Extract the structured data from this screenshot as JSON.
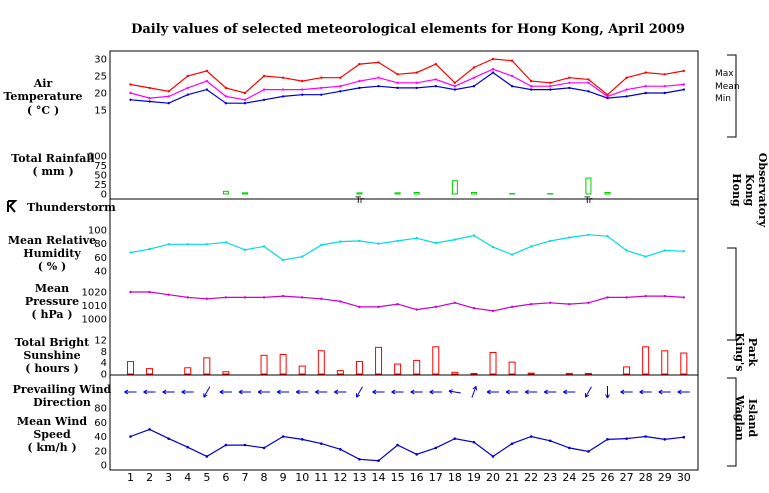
{
  "chart_data": {
    "type": "line",
    "title": "Daily values of selected meteorological elements for Hong Kong, April 2009",
    "days": [
      1,
      2,
      3,
      4,
      5,
      6,
      7,
      8,
      9,
      10,
      11,
      12,
      13,
      14,
      15,
      16,
      17,
      18,
      19,
      20,
      21,
      22,
      23,
      24,
      25,
      26,
      27,
      28,
      29,
      30
    ],
    "panels": [
      {
        "key": "temperature",
        "label": [
          "Air",
          "Temperature",
          "( °C )"
        ],
        "ylim": [
          15,
          30
        ],
        "yticks": [
          "15",
          "20",
          "25",
          "30"
        ],
        "series": [
          {
            "name": "Max",
            "color": "#ff0000",
            "values": [
              22.5,
              21.5,
              20.5,
              25,
              26.5,
              21.5,
              20,
              25,
              24.5,
              23.5,
              24.5,
              24.5,
              28.5,
              29,
              25.5,
              26,
              28.5,
              23,
              27.5,
              30,
              29.5,
              23.5,
              23,
              24.5,
              24,
              19.5,
              24.5,
              26,
              25.5,
              26.5
            ]
          },
          {
            "name": "Mean",
            "color": "#ff00ff",
            "values": [
              20,
              18.5,
              19,
              21.5,
              23.5,
              19,
              18,
              21,
              21,
              21,
              21.5,
              22,
              23.5,
              24.5,
              23,
              23,
              24,
              22,
              24.5,
              27,
              25,
              22,
              22,
              23,
              23,
              19,
              21,
              22,
              22,
              22.5
            ]
          },
          {
            "name": "Min",
            "color": "#0000cc",
            "values": [
              18,
              17.5,
              17,
              19.5,
              21,
              17,
              17,
              18,
              19,
              19.5,
              19.5,
              20.5,
              21.5,
              22,
              21.5,
              21.5,
              22,
              21,
              22,
              26,
              22,
              21,
              21,
              21.5,
              20.5,
              18.5,
              19,
              20,
              20,
              21
            ]
          }
        ]
      },
      {
        "key": "rainfall",
        "label": [
          "Total Rainfall",
          "( mm )"
        ],
        "ylim": [
          0,
          100
        ],
        "yticks": [
          "0",
          "25",
          "50",
          "75",
          "100"
        ],
        "bar_color": "#00cc00",
        "values": [
          0,
          0,
          0,
          0,
          0,
          7,
          3,
          0,
          0,
          0,
          0,
          0,
          3,
          0,
          3,
          4,
          0,
          35,
          4,
          0,
          1,
          0,
          1,
          0,
          42,
          4,
          0,
          0,
          0,
          0
        ],
        "trace_text": "Tr",
        "trace_days": [
          13,
          25
        ]
      },
      {
        "key": "thunderstorm",
        "label": [
          "Thunderstorm"
        ],
        "icon": "thunderstorm-icon",
        "days": []
      },
      {
        "key": "humidity",
        "label": [
          "Mean Relative",
          "Humidity",
          "( % )"
        ],
        "ylim": [
          40,
          100
        ],
        "yticks": [
          "40",
          "60",
          "80",
          "100"
        ],
        "color": "#00dddd",
        "values": [
          67,
          72,
          79,
          79,
          79,
          82,
          71,
          76,
          56,
          61,
          78,
          83,
          84,
          80,
          84,
          88,
          81,
          86,
          92,
          75,
          64,
          76,
          84,
          89,
          93,
          91,
          70,
          61,
          70,
          69
        ]
      },
      {
        "key": "pressure",
        "label": [
          "Mean",
          "Pressure",
          "( hPa )"
        ],
        "ylim": [
          1000,
          1020
        ],
        "yticks": [
          "1000",
          "1010",
          "1020"
        ],
        "color": "#cc00cc",
        "values": [
          1020,
          1020,
          1018,
          1016,
          1015,
          1016,
          1016,
          1016,
          1017,
          1016,
          1015,
          1013,
          1009,
          1009,
          1011,
          1007,
          1009,
          1012,
          1008,
          1006,
          1009,
          1011,
          1012,
          1011,
          1012,
          1016,
          1016,
          1017,
          1017,
          1016
        ]
      },
      {
        "key": "sunshine",
        "label": [
          "Total Bright",
          "Sunshine",
          "( hours )"
        ],
        "ylim": [
          0,
          12
        ],
        "yticks": [
          "0",
          "4",
          "8",
          "12"
        ],
        "bar_color": "#ff0000",
        "values": [
          4.4,
          1.9,
          0,
          2.2,
          5.7,
          0.8,
          0,
          6.6,
          6.9,
          2.8,
          8.2,
          1.2,
          4.4,
          9.4,
          3.5,
          4.8,
          9.6,
          0.6,
          0.2,
          7.6,
          4.2,
          0.3,
          0,
          0.2,
          0.2,
          0,
          2.5,
          9.6,
          8.2,
          7.4
        ]
      },
      {
        "key": "wind_direction",
        "label": [
          "Prevailing Wind",
          "Direction"
        ],
        "color": "#0000cc",
        "bearing_deg": [
          90,
          90,
          90,
          90,
          30,
          90,
          90,
          90,
          90,
          90,
          90,
          90,
          30,
          90,
          90,
          90,
          90,
          100,
          200,
          90,
          90,
          90,
          90,
          90,
          30,
          0,
          90,
          90,
          90,
          90
        ]
      },
      {
        "key": "wind_speed",
        "label": [
          "Mean Wind",
          "Speed",
          "( km/h )"
        ],
        "ylim": [
          0,
          80
        ],
        "yticks": [
          "0",
          "20",
          "40",
          "60",
          "80"
        ],
        "color": "#0000cc",
        "values": [
          40,
          50,
          37,
          25,
          12,
          28,
          28,
          24,
          40,
          36,
          30,
          22,
          8,
          6,
          28,
          15,
          24,
          37,
          32,
          12,
          30,
          40,
          34,
          24,
          19,
          36,
          37,
          40,
          36,
          39
        ]
      }
    ],
    "stations": [
      {
        "name": "Hong Kong Observatory",
        "text": [
          "Hong",
          "Kong",
          "Observatory"
        ]
      },
      {
        "name": "King's Park",
        "text": [
          "King's",
          "Park"
        ]
      },
      {
        "name": "Waglan Island",
        "text": [
          "Waglan",
          "Island"
        ]
      }
    ]
  }
}
